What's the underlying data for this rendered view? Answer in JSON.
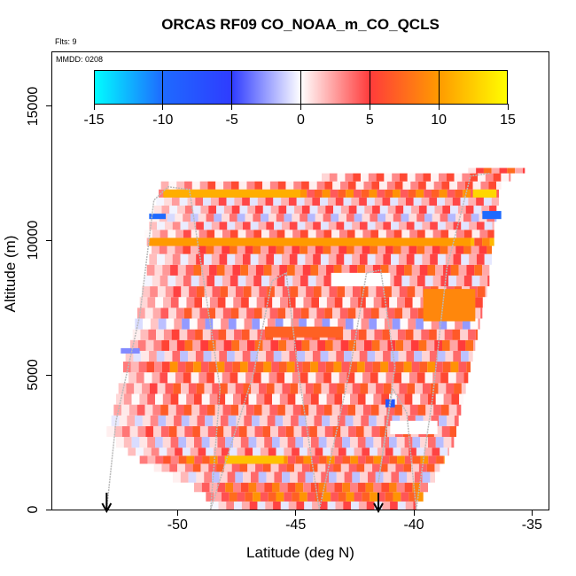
{
  "chart_data": {
    "type": "heatmap",
    "title": "ORCAS RF09 CO_NOAA_m_CO_QCLS",
    "subtitle_flights": "Flts: 9",
    "date_label": "MMDD: 0208",
    "xlabel": "Latitude (deg N)",
    "ylabel": "Altitude (m)",
    "xlim": [
      -55.3,
      -34.3
    ],
    "ylim": [
      0,
      17000
    ],
    "x_ticks": [
      -50,
      -45,
      -40,
      -35
    ],
    "x_tick_labels": [
      "-50",
      "-45",
      "-40",
      "-35"
    ],
    "y_ticks": [
      0,
      5000,
      10000,
      15000
    ],
    "y_tick_labels": [
      "0",
      "5000",
      "10000",
      "15000"
    ],
    "colorbar": {
      "range": [
        -15,
        15
      ],
      "ticks": [
        -15,
        -10,
        -5,
        0,
        5,
        10,
        15
      ],
      "tick_labels": [
        "-15",
        "-10",
        "-5",
        "0",
        "5",
        "10",
        "15"
      ],
      "colors": {
        "min": "#00ffff",
        "neg_mid": "#1e6aff",
        "neg_strong": "#2f3cff",
        "zero": "#ffffff",
        "pos_mid": "#ff3b3b",
        "pos_high": "#ff9a00",
        "max": "#ffff00"
      }
    },
    "descent_markers_lat": [
      -53.0,
      -41.5
    ],
    "bands": [
      {
        "alt_low": 0,
        "alt_high": 300,
        "lat_min": -48.6,
        "lat_max": -39.9,
        "value": 3
      },
      {
        "alt_low": 300,
        "alt_high": 650,
        "lat_min": -48.8,
        "lat_max": -39.6,
        "value": 7
      },
      {
        "alt_low": 650,
        "alt_high": 1000,
        "lat_min": -49.3,
        "lat_max": -39.4,
        "value": 5
      },
      {
        "alt_low": 1000,
        "alt_high": 1400,
        "lat_min": -50.2,
        "lat_max": -39.1,
        "value": 2
      },
      {
        "alt_low": 1400,
        "alt_high": 1700,
        "lat_min": -51.0,
        "lat_max": -38.9,
        "value": 4
      },
      {
        "alt_low": 1700,
        "alt_high": 2000,
        "lat_min": -51.6,
        "lat_max": -38.7,
        "value": 6
      },
      {
        "alt_low": 2000,
        "alt_high": 2300,
        "lat_min": -52.1,
        "lat_max": -38.5,
        "value": 3
      },
      {
        "alt_low": 2300,
        "alt_high": 2700,
        "lat_min": -52.6,
        "lat_max": -38.3,
        "value": 1
      },
      {
        "alt_low": 2700,
        "alt_high": 3100,
        "lat_min": -53.0,
        "lat_max": -38.2,
        "value": 3
      },
      {
        "alt_low": 3100,
        "alt_high": 3500,
        "lat_min": -52.8,
        "lat_max": -38.1,
        "value": 2
      },
      {
        "alt_low": 3500,
        "alt_high": 3900,
        "lat_min": -52.7,
        "lat_max": -38.0,
        "value": 4
      },
      {
        "alt_low": 3900,
        "alt_high": 4300,
        "lat_min": -52.6,
        "lat_max": -37.9,
        "value": 2
      },
      {
        "alt_low": 4300,
        "alt_high": 4700,
        "lat_min": -52.5,
        "lat_max": -37.8,
        "value": 5
      },
      {
        "alt_low": 4700,
        "alt_high": 5100,
        "lat_min": -52.4,
        "lat_max": -37.7,
        "value": 3
      },
      {
        "alt_low": 5100,
        "alt_high": 5500,
        "lat_min": -52.3,
        "lat_max": -37.6,
        "value": 6
      },
      {
        "alt_low": 5500,
        "alt_high": 5900,
        "lat_min": -52.2,
        "lat_max": -37.5,
        "value": 2
      },
      {
        "alt_low": 5900,
        "alt_high": 6300,
        "lat_min": -52.0,
        "lat_max": -37.4,
        "value": 5
      },
      {
        "alt_low": 6300,
        "alt_high": 6700,
        "lat_min": -51.9,
        "lat_max": -37.3,
        "value": 3
      },
      {
        "alt_low": 6700,
        "alt_high": 7100,
        "lat_min": -51.8,
        "lat_max": -37.2,
        "value": 1
      },
      {
        "alt_low": 7100,
        "alt_high": 7500,
        "lat_min": -51.7,
        "lat_max": -37.1,
        "value": 4
      },
      {
        "alt_low": 7500,
        "alt_high": 7900,
        "lat_min": -51.6,
        "lat_max": -37.0,
        "value": 2
      },
      {
        "alt_low": 7900,
        "alt_high": 8300,
        "lat_min": -51.5,
        "lat_max": -36.9,
        "value": 5
      },
      {
        "alt_low": 8300,
        "alt_high": 8700,
        "lat_min": -51.4,
        "lat_max": -36.8,
        "value": 2
      },
      {
        "alt_low": 8700,
        "alt_high": 9100,
        "lat_min": -51.3,
        "lat_max": -36.8,
        "value": 4
      },
      {
        "alt_low": 9100,
        "alt_high": 9500,
        "lat_min": -51.2,
        "lat_max": -36.7,
        "value": 3
      },
      {
        "alt_low": 9500,
        "alt_high": 9800,
        "lat_min": -51.1,
        "lat_max": -36.7,
        "value": 5
      },
      {
        "alt_low": 9800,
        "alt_high": 10100,
        "lat_min": -51.3,
        "lat_max": -36.6,
        "value": 8
      },
      {
        "alt_low": 10100,
        "alt_high": 10400,
        "lat_min": -51.4,
        "lat_max": -36.6,
        "value": 4
      },
      {
        "alt_low": 10400,
        "alt_high": 10700,
        "lat_min": -51.2,
        "lat_max": -36.6,
        "value": 2
      },
      {
        "alt_low": 10700,
        "alt_high": 11000,
        "lat_min": -51.1,
        "lat_max": -36.5,
        "value": 0
      },
      {
        "alt_low": 11000,
        "alt_high": 11300,
        "lat_min": -51.0,
        "lat_max": -36.5,
        "value": 3
      },
      {
        "alt_low": 11300,
        "alt_high": 11600,
        "lat_min": -50.9,
        "lat_max": -36.4,
        "value": 2
      },
      {
        "alt_low": 11600,
        "alt_high": 11900,
        "lat_min": -50.8,
        "lat_max": -36.4,
        "value": 6
      },
      {
        "alt_low": 11900,
        "alt_high": 12200,
        "lat_min": -50.7,
        "lat_max": -36.3,
        "value": 4
      },
      {
        "alt_low": 12200,
        "alt_high": 12500,
        "lat_min": -43.9,
        "lat_max": -35.9,
        "value": 3
      },
      {
        "alt_low": 12500,
        "alt_high": 12700,
        "lat_min": -37.7,
        "lat_max": -35.3,
        "value": 4
      }
    ],
    "hot_spots": [
      {
        "alt_low": 1700,
        "alt_high": 2000,
        "lat_min": -48.0,
        "lat_max": -45.5,
        "value": 12
      },
      {
        "alt_low": 9800,
        "alt_high": 10100,
        "lat_min": -51.2,
        "lat_max": -37.6,
        "value": 10
      },
      {
        "alt_low": 11600,
        "alt_high": 11900,
        "lat_min": -50.6,
        "lat_max": -44.8,
        "value": 11
      },
      {
        "alt_low": 7000,
        "alt_high": 8200,
        "lat_min": -39.6,
        "lat_max": -37.4,
        "value": 9
      },
      {
        "alt_low": 6400,
        "alt_high": 6800,
        "lat_min": -46.3,
        "lat_max": -43.0,
        "value": 7
      },
      {
        "alt_low": 11600,
        "alt_high": 11900,
        "lat_min": -37.5,
        "lat_max": -36.5,
        "value": 13
      },
      {
        "alt_low": 10800,
        "alt_high": 11000,
        "lat_min": -51.2,
        "lat_max": -50.5,
        "value": -10
      },
      {
        "alt_low": 10800,
        "alt_high": 11100,
        "lat_min": -37.1,
        "lat_max": -36.3,
        "value": -10
      },
      {
        "alt_low": 3800,
        "alt_high": 4100,
        "lat_min": -41.2,
        "lat_max": -40.8,
        "value": -8
      },
      {
        "alt_low": 5800,
        "alt_high": 6000,
        "lat_min": -52.4,
        "lat_max": -51.6,
        "value": -3
      },
      {
        "alt_low": 2800,
        "alt_high": 3300,
        "lat_min": -41.0,
        "lat_max": -39.0,
        "value": 0
      },
      {
        "alt_low": 8300,
        "alt_high": 8800,
        "lat_min": -43.5,
        "lat_max": -41.0,
        "value": 0
      }
    ],
    "flight_track": [
      [
        -53.0,
        0
      ],
      [
        -52.6,
        3300
      ],
      [
        -51.6,
        7200
      ],
      [
        -51.0,
        11500
      ],
      [
        -50.4,
        12000
      ],
      [
        -49.5,
        11900
      ],
      [
        -48.8,
        8000
      ],
      [
        -48.2,
        4500
      ],
      [
        -48.6,
        0
      ],
      [
        -46.8,
        5000
      ],
      [
        -46.0,
        8500
      ],
      [
        -45.4,
        8800
      ],
      [
        -44.9,
        5200
      ],
      [
        -44.0,
        0
      ],
      [
        -42.7,
        5200
      ],
      [
        -42.0,
        8800
      ],
      [
        -41.4,
        8900
      ],
      [
        -40.8,
        5300
      ],
      [
        -41.5,
        1000
      ],
      [
        -40.9,
        4500
      ],
      [
        -40.3,
        3600
      ],
      [
        -39.9,
        0
      ],
      [
        -39.2,
        4200
      ],
      [
        -38.6,
        9000
      ],
      [
        -37.6,
        12400
      ],
      [
        -36.8,
        12500
      ]
    ]
  }
}
